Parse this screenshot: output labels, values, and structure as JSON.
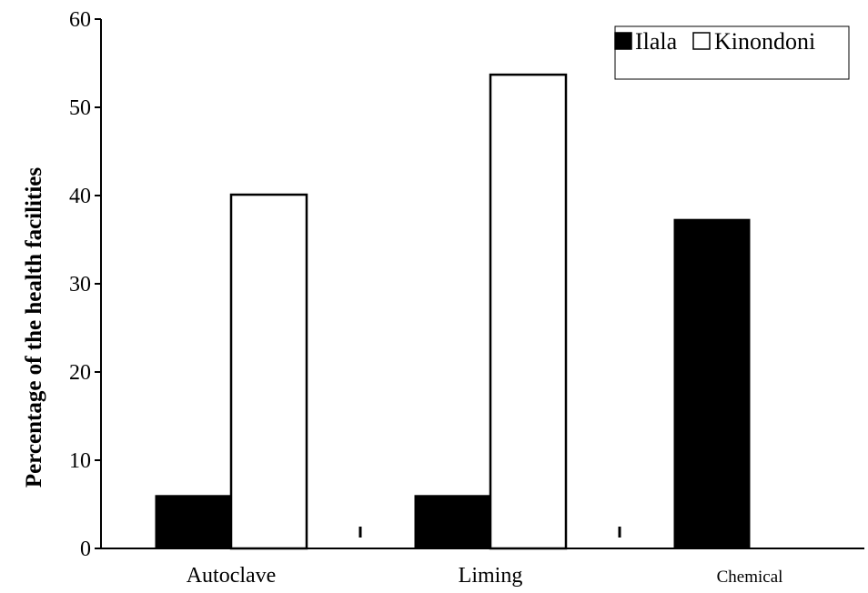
{
  "chart_data": {
    "type": "bar",
    "title": "",
    "xlabel": "",
    "ylabel": "Percentage of the health facilities",
    "ylim": [
      0,
      60
    ],
    "yticks": [
      0,
      10,
      20,
      30,
      40,
      50,
      60
    ],
    "categories": [
      "Autoclave",
      "Liming",
      "Chemical"
    ],
    "series": [
      {
        "name": "Ilala",
        "values": [
          6,
          6,
          37.3
        ],
        "color": "#000000"
      },
      {
        "name": "Kinondoni",
        "values": [
          40.1,
          53.7,
          0
        ],
        "color": "#ffffff"
      }
    ],
    "legend": {
      "placement": "top-right"
    },
    "grid": false
  }
}
